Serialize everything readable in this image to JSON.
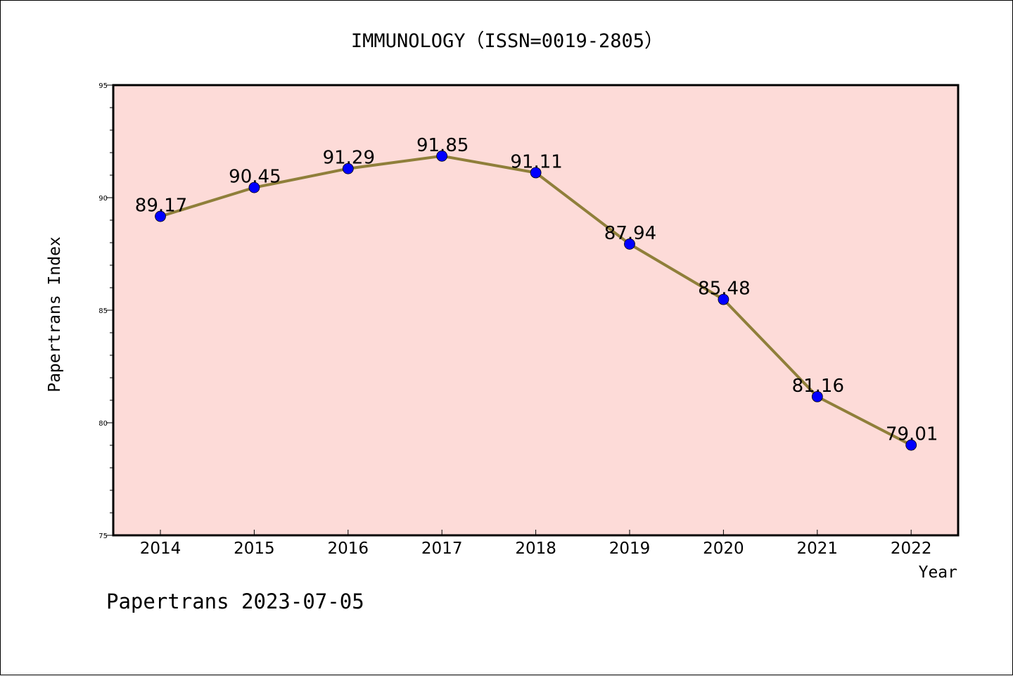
{
  "chart_data": {
    "type": "line",
    "title": "IMMUNOLOGY（ISSN=0019-2805）",
    "xlabel": "Year",
    "ylabel": "Papertrans Index",
    "categories": [
      "2014",
      "2015",
      "2016",
      "2017",
      "2018",
      "2019",
      "2020",
      "2021",
      "2022"
    ],
    "series": [
      {
        "values": [
          89.17,
          90.45,
          91.29,
          91.85,
          91.11,
          87.94,
          85.48,
          81.16,
          79.01
        ],
        "labels": [
          "89.17",
          "90.45",
          "91.29",
          "91.85",
          "91.11",
          "87.94",
          "85.48",
          "81.16",
          "79.01"
        ]
      }
    ],
    "ylim": [
      75,
      95
    ],
    "yticks": [
      "75",
      "80",
      "85",
      "90",
      "95"
    ],
    "grid": false,
    "legend": "none",
    "colors": {
      "plot_background": "#fddbd8",
      "line": "#8f7f3a",
      "marker": "#0000ff",
      "axis": "#000000"
    }
  },
  "footer": {
    "text": "Papertrans 2023-07-05"
  }
}
